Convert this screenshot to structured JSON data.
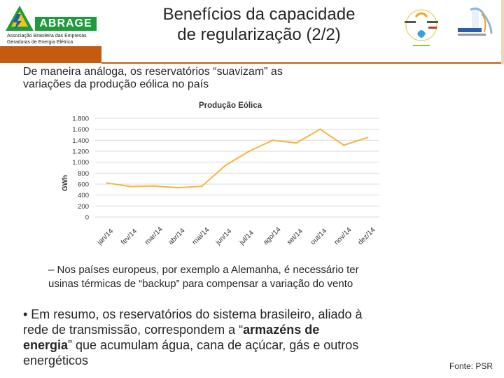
{
  "header": {
    "logo_word": "ABRAGE",
    "logo_sub_line1": "Associação Brasileira das Empresas",
    "logo_sub_line2": "Geradoras de Energia Elétrica",
    "title_line1": "Benefícios da capacidade",
    "title_line2": "de regularização (2/2)",
    "accent_color": "#c55a11",
    "logo_green": "#1f9b3d"
  },
  "intro": {
    "line1": "De maneira análoga, os reservatórios “suavizam” as",
    "line2": "variações da produção eólica no país"
  },
  "chart_data": {
    "type": "line",
    "title": "Produção Eólica",
    "ylabel": "GWh",
    "xlabel": "",
    "categories": [
      "jan/14",
      "fev/14",
      "mar/14",
      "abr/14",
      "mai/14",
      "jun/14",
      "jul/14",
      "ago/14",
      "set/14",
      "out/14",
      "nov/14",
      "dez/14"
    ],
    "values": [
      620,
      555,
      565,
      535,
      560,
      940,
      1200,
      1400,
      1350,
      1600,
      1310,
      1450
    ],
    "ylim": [
      0,
      1800
    ],
    "yticks": [
      0,
      200,
      400,
      600,
      800,
      1000,
      1200,
      1400,
      1600,
      1800
    ],
    "ytick_labels": [
      "0",
      "200",
      "400",
      "600",
      "800",
      "1.000",
      "1.200",
      "1.400",
      "1.600",
      "1.800"
    ],
    "grid": true,
    "line_color": "#f5b53f"
  },
  "sub_bullet": {
    "line1": "– Nos países europeus, por exemplo a Alemanha, é necessário ter",
    "line2": "usinas térmicas de “backup” para compensar a variação do vento"
  },
  "main_bullet": {
    "line1": "• Em resumo, os reservatórios do sistema brasileiro, aliado à",
    "line2": "rede de transmissão, correspondem a “",
    "line2_bold": "armazéns de",
    "line3_bold": "energia",
    "line3": "” que acumulam água, cana de açúcar, gás e outros",
    "line4": "energéticos"
  },
  "source": "Fonte: PSR"
}
